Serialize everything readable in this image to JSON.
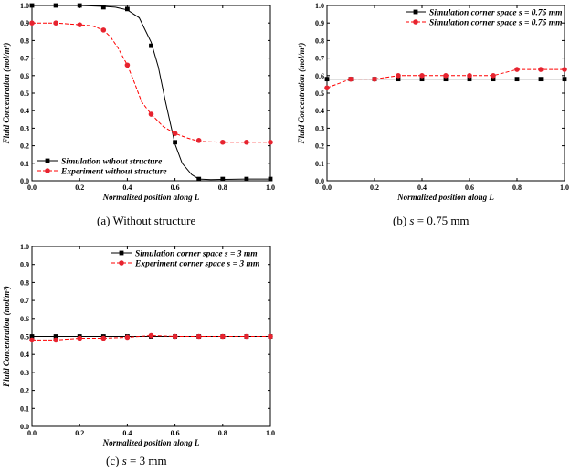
{
  "colors": {
    "simulation": "#000000",
    "experiment": "#ff0000",
    "experiment_marker": "#e6232f",
    "axis": "#000000",
    "background": "#ffffff"
  },
  "captions": {
    "a": {
      "prefix": "(a) Without structure",
      "italic": "",
      "suffix": ""
    },
    "b": {
      "prefix": "(b) ",
      "italic": "s",
      "suffix": " = 0.75 mm"
    },
    "c": {
      "prefix": "(c) ",
      "italic": "s",
      "suffix": " = 3 mm"
    }
  },
  "chart_data": [
    {
      "id": "a",
      "type": "line",
      "xlabel": "Normalized position along L",
      "ylabel": "Fluid Concentration (mol/m³)",
      "xlim": [
        0,
        1.0
      ],
      "ylim": [
        0,
        1.0
      ],
      "xticks": [
        "0.0",
        "0.2",
        "0.4",
        "0.6",
        "0.8",
        "1.0"
      ],
      "yticks": [
        "0.0",
        "0.1",
        "0.2",
        "0.3",
        "0.4",
        "0.5",
        "0.6",
        "0.7",
        "0.8",
        "0.9",
        "1.0"
      ],
      "legend_position": "bottom-left",
      "series": [
        {
          "name": "Simulation wthout structure",
          "style": "solid",
          "marker": "square",
          "x": [
            0,
            0.1,
            0.2,
            0.3,
            0.4,
            0.5,
            0.6,
            0.7,
            0.8,
            0.9,
            1.0
          ],
          "y": [
            1.0,
            1.0,
            1.0,
            0.99,
            0.98,
            0.77,
            0.22,
            0.01,
            0.01,
            0.01,
            0.01
          ],
          "curve_x": [
            0,
            0.1,
            0.2,
            0.3,
            0.35,
            0.4,
            0.45,
            0.5,
            0.53,
            0.56,
            0.6,
            0.63,
            0.67,
            0.7,
            0.75,
            0.8,
            0.9,
            1.0
          ],
          "curve_y": [
            1.0,
            1.0,
            1.0,
            0.995,
            0.99,
            0.975,
            0.93,
            0.79,
            0.65,
            0.45,
            0.21,
            0.1,
            0.035,
            0.01,
            0.007,
            0.008,
            0.01,
            0.01
          ]
        },
        {
          "name": "Experiment without structure",
          "style": "dashed",
          "marker": "circle",
          "x": [
            0,
            0.1,
            0.2,
            0.3,
            0.4,
            0.5,
            0.6,
            0.7,
            0.8,
            0.9,
            1.0
          ],
          "y": [
            0.9,
            0.9,
            0.89,
            0.86,
            0.66,
            0.38,
            0.27,
            0.23,
            0.22,
            0.22,
            0.22
          ],
          "curve_x": [
            0,
            0.1,
            0.2,
            0.25,
            0.3,
            0.33,
            0.36,
            0.4,
            0.43,
            0.46,
            0.5,
            0.55,
            0.6,
            0.65,
            0.7,
            0.8,
            0.9,
            1.0
          ],
          "curve_y": [
            0.9,
            0.9,
            0.89,
            0.885,
            0.86,
            0.82,
            0.76,
            0.66,
            0.56,
            0.45,
            0.38,
            0.31,
            0.27,
            0.245,
            0.225,
            0.22,
            0.22,
            0.22
          ]
        }
      ]
    },
    {
      "id": "b",
      "type": "line",
      "xlabel": "Normalized position along L",
      "ylabel": "Fluid Concentration (mol/m³)",
      "xlim": [
        0,
        1.0
      ],
      "ylim": [
        0,
        1.0
      ],
      "xticks": [
        "0.0",
        "0.2",
        "0.4",
        "0.6",
        "0.8",
        "1.0"
      ],
      "yticks": [
        "0.0",
        "0.1",
        "0.2",
        "0.3",
        "0.4",
        "0.5",
        "0.6",
        "0.7",
        "0.8",
        "0.9",
        "1.0"
      ],
      "legend_position": "top-right",
      "series": [
        {
          "name": "Simulation corner space s = 0.75 mm",
          "style": "solid",
          "marker": "square",
          "x": [
            0,
            0.1,
            0.2,
            0.3,
            0.4,
            0.5,
            0.6,
            0.7,
            0.8,
            0.9,
            1.0
          ],
          "y": [
            0.58,
            0.58,
            0.58,
            0.58,
            0.58,
            0.58,
            0.58,
            0.58,
            0.58,
            0.58,
            0.58
          ]
        },
        {
          "name": "Simulation corner space s = 0.75 mm",
          "style": "dashed",
          "marker": "circle",
          "x": [
            0,
            0.1,
            0.2,
            0.3,
            0.4,
            0.5,
            0.6,
            0.7,
            0.8,
            0.9,
            1.0
          ],
          "y": [
            0.53,
            0.58,
            0.58,
            0.6,
            0.6,
            0.6,
            0.6,
            0.6,
            0.635,
            0.635,
            0.635
          ]
        }
      ]
    },
    {
      "id": "c",
      "type": "line",
      "xlabel": "Normalized position along L",
      "ylabel": "Fluid Concentration (mol/m³)",
      "xlim": [
        0,
        1.0
      ],
      "ylim": [
        0,
        1.0
      ],
      "xticks": [
        "0.0",
        "0.2",
        "0.4",
        "0.6",
        "0.8",
        "1.0"
      ],
      "yticks": [
        "0.0",
        "0.1",
        "0.2",
        "0.3",
        "0.4",
        "0.5",
        "0.6",
        "0.7",
        "0.8",
        "0.9",
        "1.0"
      ],
      "legend_position": "top-right",
      "series": [
        {
          "name": "Simulation corner space s = 3 mm",
          "style": "solid",
          "marker": "square",
          "x": [
            0,
            0.1,
            0.2,
            0.3,
            0.4,
            0.5,
            0.6,
            0.7,
            0.8,
            0.9,
            1.0
          ],
          "y": [
            0.5,
            0.5,
            0.5,
            0.5,
            0.5,
            0.5,
            0.5,
            0.5,
            0.5,
            0.5,
            0.5
          ]
        },
        {
          "name": "Experiment corner space s = 3 mm",
          "style": "dashed",
          "marker": "circle",
          "x": [
            0,
            0.1,
            0.2,
            0.3,
            0.4,
            0.5,
            0.6,
            0.7,
            0.8,
            0.9,
            1.0
          ],
          "y": [
            0.48,
            0.48,
            0.49,
            0.49,
            0.495,
            0.505,
            0.5,
            0.5,
            0.5,
            0.5,
            0.5
          ]
        }
      ]
    }
  ]
}
